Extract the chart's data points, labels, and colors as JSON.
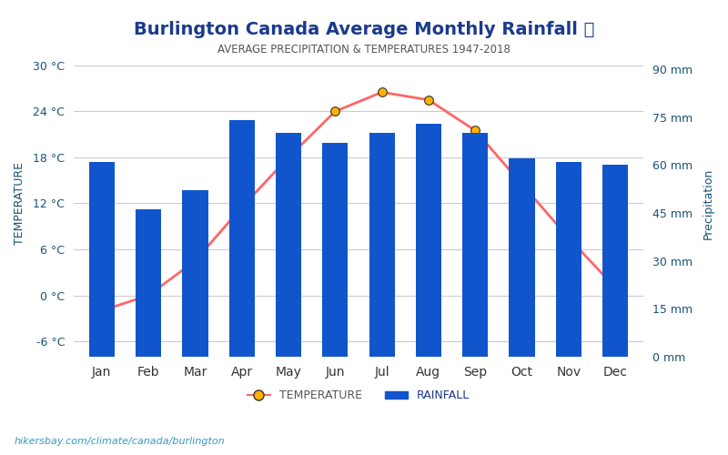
{
  "title": "Burlington Canada Average Monthly Rainfall 🌧",
  "subtitle": "AVERAGE PRECIPITATION & TEMPERATURES 1947-2018",
  "months": [
    "Jan",
    "Feb",
    "Mar",
    "Apr",
    "May",
    "Jun",
    "Jul",
    "Aug",
    "Sep",
    "Oct",
    "Nov",
    "Dec"
  ],
  "rainfall_mm": [
    61,
    46,
    52,
    74,
    70,
    67,
    70,
    73,
    70,
    62,
    61,
    60
  ],
  "temperature_c": [
    -2.0,
    0.0,
    4.5,
    11.5,
    18.0,
    24.0,
    26.5,
    25.5,
    21.5,
    14.5,
    7.5,
    1.0
  ],
  "bar_color": "#1155CC",
  "line_color": "#FF6666",
  "marker_color": "#FFB300",
  "marker_edge_color": "#333333",
  "temp_ylim": [
    -8,
    32
  ],
  "temp_yticks": [
    -6,
    0,
    6,
    12,
    18,
    24,
    30
  ],
  "precip_ylim": [
    0,
    96
  ],
  "precip_yticks": [
    0,
    15,
    30,
    45,
    60,
    75,
    90
  ],
  "title_color": "#1a3a8c",
  "subtitle_color": "#555555",
  "axis_label_color": "#1a5276",
  "tick_color": "#555555",
  "ylabel_left": "TEMPERATURE",
  "ylabel_right": "Precipitation",
  "watermark": "hikersbay.com/climate/canada/burlington",
  "background_color": "#ffffff",
  "grid_color": "#cccccc"
}
